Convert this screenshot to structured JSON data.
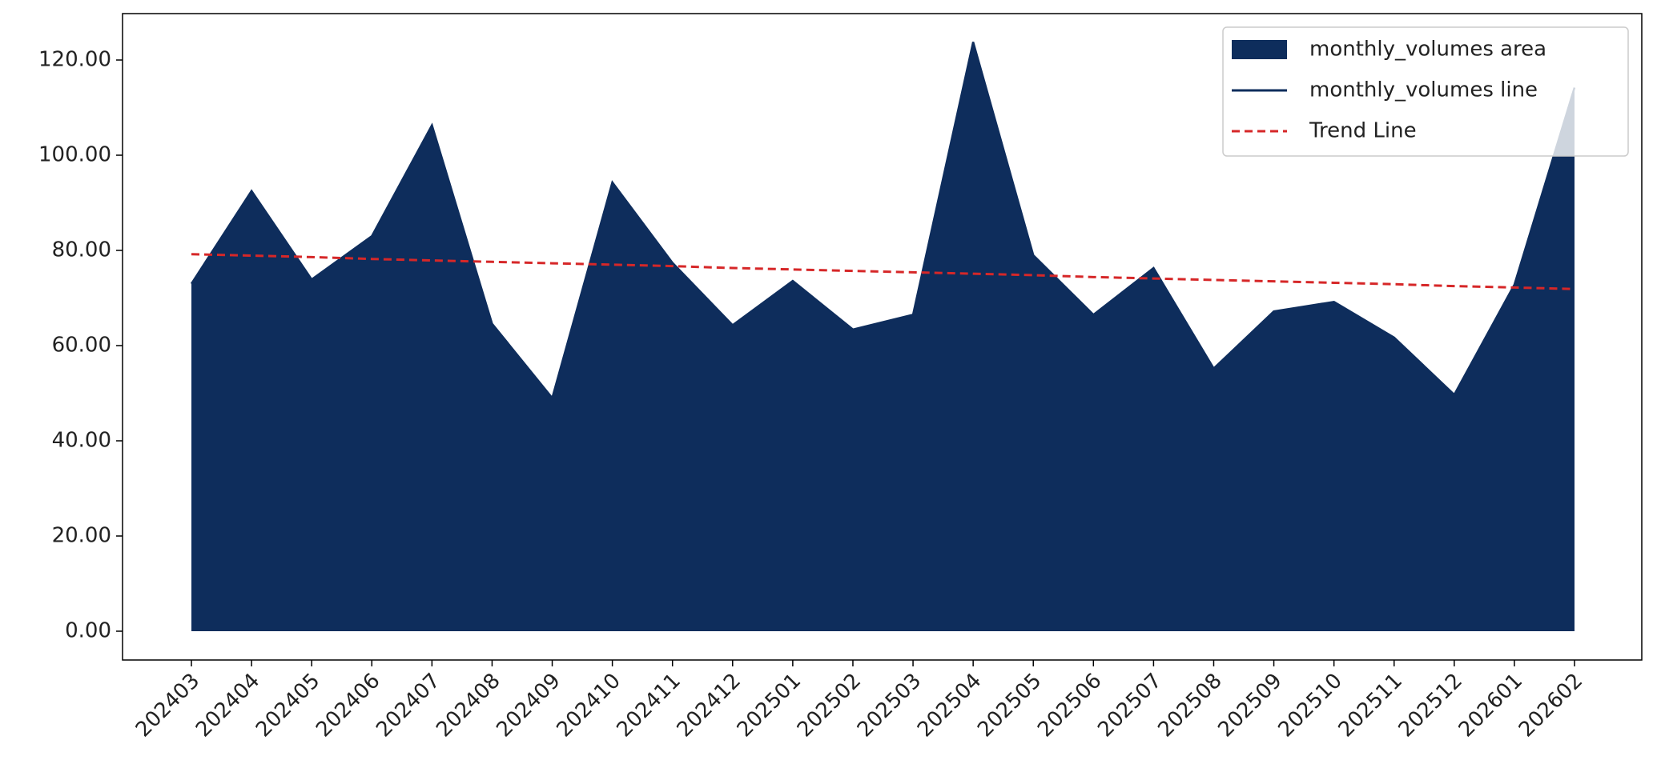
{
  "chart_data": {
    "type": "area",
    "categories": [
      "202403",
      "202404",
      "202405",
      "202406",
      "202407",
      "202408",
      "202409",
      "202410",
      "202411",
      "202412",
      "202501",
      "202502",
      "202503",
      "202504",
      "202505",
      "202506",
      "202507",
      "202508",
      "202509",
      "202510",
      "202511",
      "202512",
      "202601",
      "202602"
    ],
    "series": [
      {
        "name": "monthly_volumes area",
        "color": "#0e2d5c",
        "values": [
          73.0,
          92.5,
          73.9,
          83.0,
          106.3,
          64.6,
          49.0,
          94.3,
          77.4,
          64.3,
          73.6,
          63.4,
          66.5,
          123.8,
          79.0,
          66.5,
          76.3,
          55.2,
          67.2,
          69.2,
          61.7,
          49.7,
          72.8,
          114.2
        ]
      },
      {
        "name": "monthly_volumes line",
        "color": "#0e2d5c",
        "values": [
          73.0,
          92.5,
          73.9,
          83.0,
          106.3,
          64.6,
          49.0,
          94.3,
          77.4,
          64.3,
          73.6,
          63.4,
          66.5,
          123.8,
          79.0,
          66.5,
          76.3,
          55.2,
          67.2,
          69.2,
          61.7,
          49.7,
          72.8,
          114.2
        ]
      },
      {
        "name": "Trend Line",
        "color": "#d62728",
        "dashed": true,
        "values": [
          79.2,
          78.9,
          78.6,
          78.2,
          77.9,
          77.6,
          77.3,
          77.0,
          76.7,
          76.3,
          76.0,
          75.7,
          75.4,
          75.1,
          74.8,
          74.4,
          74.1,
          73.8,
          73.5,
          73.2,
          72.9,
          72.5,
          72.2,
          71.9
        ]
      }
    ],
    "ylim": [
      -6.05,
      129.75
    ],
    "yticks": [
      {
        "value": 0,
        "label": "0.00"
      },
      {
        "value": 20,
        "label": "20.00"
      },
      {
        "value": 40,
        "label": "40.00"
      },
      {
        "value": 60,
        "label": "60.00"
      },
      {
        "value": 80,
        "label": "80.00"
      },
      {
        "value": 100,
        "label": "100.00"
      },
      {
        "value": 120,
        "label": "120.00"
      }
    ],
    "legend": "upper right"
  }
}
